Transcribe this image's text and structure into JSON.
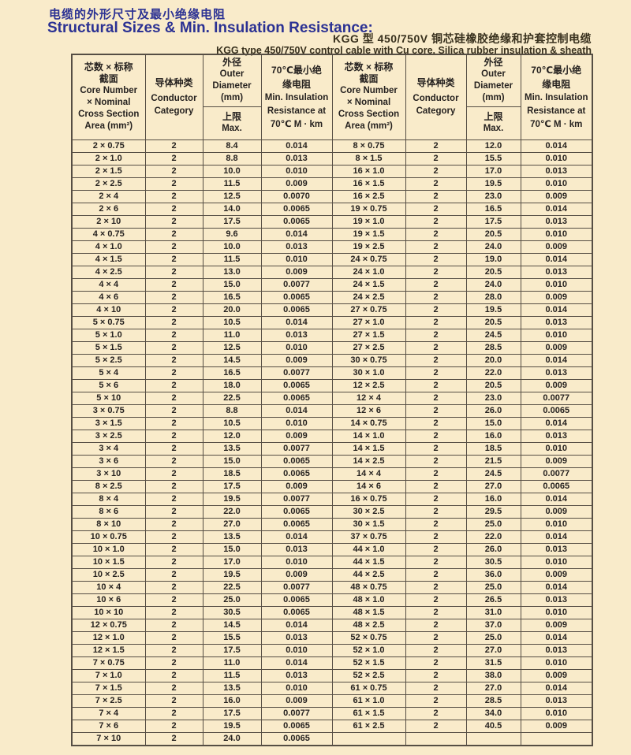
{
  "page": {
    "title_zh": "电缆的外形尺寸及最小绝缘电阻",
    "title_en": "Structural Sizes & Min. Insulation Resistance:",
    "subtitle_zh": "KGG 型 450/750V 铜芯硅橡胶绝缘和护套控制电缆",
    "subtitle_en": "KGG type 450/750V control cable with Cu core, Silica rubber insulation & sheath",
    "colors": {
      "background": "#f9ebca",
      "title_blue": "#2b3193",
      "text_dark": "#38301d",
      "table_border": "#564e44"
    }
  },
  "table": {
    "header": {
      "core": [
        "芯数 × 标称",
        "截面",
        "Core Number",
        "× Nominal",
        "Cross Section",
        "Area (mm²)"
      ],
      "conductor": [
        "导体种类",
        "Conductor",
        "Category"
      ],
      "outer": [
        "外径",
        "Outer",
        "Diameter",
        "(mm)"
      ],
      "outer_max": [
        "上限",
        "Max."
      ],
      "resistance": [
        "70℃最小绝",
        "缘电阻",
        "Min. Insulation",
        "Resistance at",
        "70℃ M · km"
      ]
    },
    "rows": [
      [
        "2 × 0.75",
        "2",
        "8.4",
        "0.014",
        "8 × 0.75",
        "2",
        "12.0",
        "0.014"
      ],
      [
        "2 × 1.0",
        "2",
        "8.8",
        "0.013",
        "8 × 1.5",
        "2",
        "15.5",
        "0.010"
      ],
      [
        "2 × 1.5",
        "2",
        "10.0",
        "0.010",
        "16 × 1.0",
        "2",
        "17.0",
        "0.013"
      ],
      [
        "2 × 2.5",
        "2",
        "11.5",
        "0.009",
        "16 × 1.5",
        "2",
        "19.5",
        "0.010"
      ],
      [
        "2 × 4",
        "2",
        "12.5",
        "0.0070",
        "16 × 2.5",
        "2",
        "23.0",
        "0.009"
      ],
      [
        "2 × 6",
        "2",
        "14.0",
        "0.0065",
        "19 × 0.75",
        "2",
        "16.5",
        "0.014"
      ],
      [
        "2 × 10",
        "2",
        "17.5",
        "0.0065",
        "19 × 1.0",
        "2",
        "17.5",
        "0.013"
      ],
      [
        "4 × 0.75",
        "2",
        "9.6",
        "0.014",
        "19 × 1.5",
        "2",
        "20.5",
        "0.010"
      ],
      [
        "4 × 1.0",
        "2",
        "10.0",
        "0.013",
        "19 × 2.5",
        "2",
        "24.0",
        "0.009"
      ],
      [
        "4 × 1.5",
        "2",
        "11.5",
        "0.010",
        "24 × 0.75",
        "2",
        "19.0",
        "0.014"
      ],
      [
        "4 × 2.5",
        "2",
        "13.0",
        "0.009",
        "24 × 1.0",
        "2",
        "20.5",
        "0.013"
      ],
      [
        "4 × 4",
        "2",
        "15.0",
        "0.0077",
        "24 × 1.5",
        "2",
        "24.0",
        "0.010"
      ],
      [
        "4 × 6",
        "2",
        "16.5",
        "0.0065",
        "24 × 2.5",
        "2",
        "28.0",
        "0.009"
      ],
      [
        "4 × 10",
        "2",
        "20.0",
        "0.0065",
        "27 × 0.75",
        "2",
        "19.5",
        "0.014"
      ],
      [
        "5 × 0.75",
        "2",
        "10.5",
        "0.014",
        "27 × 1.0",
        "2",
        "20.5",
        "0.013"
      ],
      [
        "5 × 1.0",
        "2",
        "11.0",
        "0.013",
        "27 × 1.5",
        "2",
        "24.5",
        "0.010"
      ],
      [
        "5 × 1.5",
        "2",
        "12.5",
        "0.010",
        "27 × 2.5",
        "2",
        "28.5",
        "0.009"
      ],
      [
        "5 × 2.5",
        "2",
        "14.5",
        "0.009",
        "30 × 0.75",
        "2",
        "20.0",
        "0.014"
      ],
      [
        "5 × 4",
        "2",
        "16.5",
        "0.0077",
        "30 × 1.0",
        "2",
        "22.0",
        "0.013"
      ],
      [
        "5 × 6",
        "2",
        "18.0",
        "0.0065",
        "12 × 2.5",
        "2",
        "20.5",
        "0.009"
      ],
      [
        "5 × 10",
        "2",
        "22.5",
        "0.0065",
        "12 × 4",
        "2",
        "23.0",
        "0.0077"
      ],
      [
        "3 × 0.75",
        "2",
        "8.8",
        "0.014",
        "12 × 6",
        "2",
        "26.0",
        "0.0065"
      ],
      [
        "3 × 1.5",
        "2",
        "10.5",
        "0.010",
        "14 × 0.75",
        "2",
        "15.0",
        "0.014"
      ],
      [
        "3 × 2.5",
        "2",
        "12.0",
        "0.009",
        "14 × 1.0",
        "2",
        "16.0",
        "0.013"
      ],
      [
        "3 × 4",
        "2",
        "13.5",
        "0.0077",
        "14 × 1.5",
        "2",
        "18.5",
        "0.010"
      ],
      [
        "3 × 6",
        "2",
        "15.0",
        "0.0065",
        "14 × 2.5",
        "2",
        "21.5",
        "0.009"
      ],
      [
        "3 × 10",
        "2",
        "18.5",
        "0.0065",
        "14 × 4",
        "2",
        "24.5",
        "0.0077"
      ],
      [
        "8 × 2.5",
        "2",
        "17.5",
        "0.009",
        "14 × 6",
        "2",
        "27.0",
        "0.0065"
      ],
      [
        "8 × 4",
        "2",
        "19.5",
        "0.0077",
        "16 × 0.75",
        "2",
        "16.0",
        "0.014"
      ],
      [
        "8 × 6",
        "2",
        "22.0",
        "0.0065",
        "30 × 2.5",
        "2",
        "29.5",
        "0.009"
      ],
      [
        "8 × 10",
        "2",
        "27.0",
        "0.0065",
        "30 × 1.5",
        "2",
        "25.0",
        "0.010"
      ],
      [
        "10 × 0.75",
        "2",
        "13.5",
        "0.014",
        "37 × 0.75",
        "2",
        "22.0",
        "0.014"
      ],
      [
        "10 × 1.0",
        "2",
        "15.0",
        "0.013",
        "44 × 1.0",
        "2",
        "26.0",
        "0.013"
      ],
      [
        "10 × 1.5",
        "2",
        "17.0",
        "0.010",
        "44 × 1.5",
        "2",
        "30.5",
        "0.010"
      ],
      [
        "10 × 2.5",
        "2",
        "19.5",
        "0.009",
        "44 × 2.5",
        "2",
        "36.0",
        "0.009"
      ],
      [
        "10 × 4",
        "2",
        "22.5",
        "0.0077",
        "48 × 0.75",
        "2",
        "25.0",
        "0.014"
      ],
      [
        "10 × 6",
        "2",
        "25.0",
        "0.0065",
        "48 × 1.0",
        "2",
        "26.5",
        "0.013"
      ],
      [
        "10 × 10",
        "2",
        "30.5",
        "0.0065",
        "48 × 1.5",
        "2",
        "31.0",
        "0.010"
      ],
      [
        "12 × 0.75",
        "2",
        "14.5",
        "0.014",
        "48 × 2.5",
        "2",
        "37.0",
        "0.009"
      ],
      [
        "12 × 1.0",
        "2",
        "15.5",
        "0.013",
        "52 × 0.75",
        "2",
        "25.0",
        "0.014"
      ],
      [
        "12 × 1.5",
        "2",
        "17.5",
        "0.010",
        "52 × 1.0",
        "2",
        "27.0",
        "0.013"
      ],
      [
        "7 × 0.75",
        "2",
        "11.0",
        "0.014",
        "52 × 1.5",
        "2",
        "31.5",
        "0.010"
      ],
      [
        "7 × 1.0",
        "2",
        "11.5",
        "0.013",
        "52 × 2.5",
        "2",
        "38.0",
        "0.009"
      ],
      [
        "7 × 1.5",
        "2",
        "13.5",
        "0.010",
        "61 × 0.75",
        "2",
        "27.0",
        "0.014"
      ],
      [
        "7 × 2.5",
        "2",
        "16.0",
        "0.009",
        "61 × 1.0",
        "2",
        "28.5",
        "0.013"
      ],
      [
        "7 × 4",
        "2",
        "17.5",
        "0.0077",
        "61 × 1.5",
        "2",
        "34.0",
        "0.010"
      ],
      [
        "7 × 6",
        "2",
        "19.5",
        "0.0065",
        "61 × 2.5",
        "2",
        "40.5",
        "0.009"
      ],
      [
        "7 × 10",
        "2",
        "24.0",
        "0.0065",
        "",
        "",
        "",
        ""
      ]
    ]
  }
}
